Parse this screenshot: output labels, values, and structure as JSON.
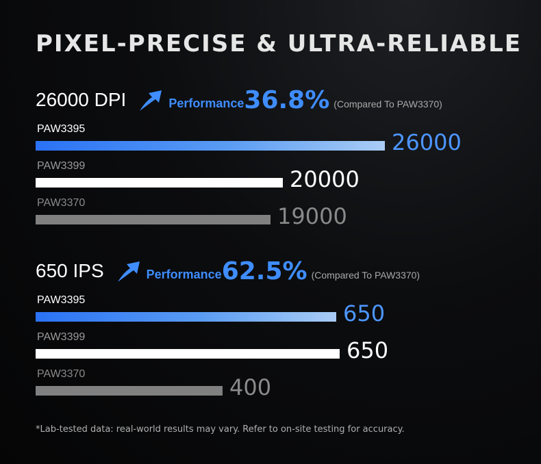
{
  "title": "PIXEL-PRECISE & ULTRA-RELIABLE",
  "footnote": "*Lab-tested data: real-world results may vary. Refer to on-site testing for accuracy.",
  "colors": {
    "blue": "#3f8dff",
    "white": "#ffffff",
    "gray": "#808080"
  },
  "chart_data": [
    {
      "type": "bar",
      "title": "26000 DPI",
      "performance_label": "Performance",
      "performance_value": "36.8%",
      "comparison_note": "(Compared To PAW3370)",
      "max": 26000,
      "bars": [
        {
          "name": "PAW3395",
          "value": 26000,
          "value_label": "26000",
          "style": "blue"
        },
        {
          "name": "PAW3399",
          "value": 20000,
          "value_label": "20000",
          "style": "white"
        },
        {
          "name": "PAW3370",
          "value": 19000,
          "value_label": "19000",
          "style": "gray"
        }
      ]
    },
    {
      "type": "bar",
      "title": "650 IPS",
      "performance_label": "Performance",
      "performance_value": "62.5%",
      "comparison_note": "(Compared To PAW3370)",
      "max": 650,
      "bars": [
        {
          "name": "PAW3395",
          "value": 650,
          "value_label": "650",
          "style": "blue"
        },
        {
          "name": "PAW3399",
          "value": 650,
          "value_label": "650",
          "style": "white"
        },
        {
          "name": "PAW3370",
          "value": 400,
          "value_label": "400",
          "style": "gray"
        }
      ]
    }
  ]
}
